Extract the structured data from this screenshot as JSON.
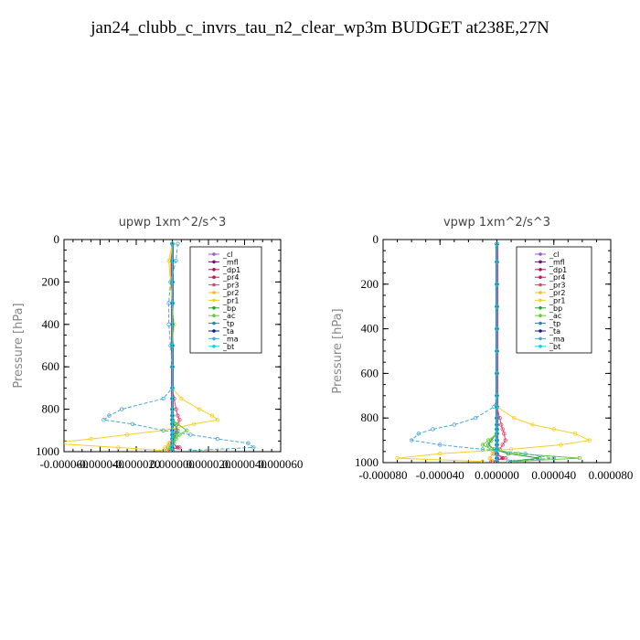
{
  "title": "jan24_clubb_c_invrs_tau_n2_clear_wp3m  BUDGET at238E,27N",
  "series_names": [
    "_cl",
    "_mfl",
    "_dp1",
    "_pr4",
    "_pr3",
    "_pr2",
    "_pr1",
    "_bp",
    "_ac",
    "_tp",
    "_ta",
    "_ma",
    "_bt"
  ],
  "series_colors": [
    "#9b59d0",
    "#7a0f7a",
    "#b0105a",
    "#c2185b",
    "#e8436a",
    "#f0c020",
    "#f5d020",
    "#2aa02a",
    "#66cc33",
    "#1e88b8",
    "#0a1a9a",
    "#4aa8d8",
    "#00d8e8"
  ],
  "chart_data": [
    {
      "type": "line",
      "title": "upwp   1xm^2/s^3",
      "ylabel": "Pressure [hPa]",
      "xlim": [
        -6e-05,
        6e-05
      ],
      "ylim": [
        1000,
        0
      ],
      "xticks": [
        "-0.000060",
        "-0.000040",
        "-0.000020",
        "0.000000",
        "0.000020",
        "0.000040",
        "0.000060"
      ],
      "yticks": [
        "0",
        "200",
        "400",
        "600",
        "800",
        "1000"
      ],
      "y": [
        20,
        100,
        200,
        300,
        400,
        500,
        600,
        700,
        750,
        800,
        830,
        850,
        870,
        900,
        920,
        940,
        960,
        980,
        995
      ],
      "series": [
        {
          "name": "_cl",
          "values": [
            0,
            0,
            0,
            0,
            0,
            0,
            0,
            0,
            0,
            0,
            0,
            0,
            0,
            0,
            0,
            0,
            0,
            0,
            0
          ]
        },
        {
          "name": "_mfl",
          "values": [
            0,
            0,
            0,
            0,
            0,
            0,
            0,
            0,
            0,
            0,
            0,
            0,
            0,
            0,
            0,
            0,
            0,
            0,
            0
          ]
        },
        {
          "name": "_dp1",
          "values": [
            0,
            0,
            0,
            0,
            0,
            0,
            0,
            0,
            0,
            0,
            0,
            0,
            0,
            0,
            0,
            0,
            0,
            3e-06,
            -2e-06
          ]
        },
        {
          "name": "_pr4",
          "values": [
            0,
            0,
            0,
            0,
            0,
            0,
            0,
            0,
            0,
            0,
            0,
            0,
            0,
            0,
            0,
            0,
            0,
            0,
            0
          ]
        },
        {
          "name": "_pr3",
          "values": [
            0,
            0,
            0,
            0,
            0,
            0,
            0,
            0,
            1e-06,
            2e-06,
            3e-06,
            4e-06,
            3e-06,
            2e-06,
            1e-06,
            0,
            -1e-06,
            4e-06,
            -3e-06
          ]
        },
        {
          "name": "_pr2",
          "values": [
            0,
            -1e-06,
            -1e-06,
            0,
            0,
            0,
            0,
            0,
            0,
            0,
            0,
            0,
            0,
            0,
            0,
            0,
            -2e-06,
            -4e-06,
            -2e-06
          ]
        },
        {
          "name": "_pr1",
          "values": [
            0,
            -2e-06,
            -1e-06,
            0,
            1e-06,
            0,
            0,
            0,
            5e-06,
            1.5e-05,
            2.2e-05,
            2.5e-05,
            1.2e-05,
            -5e-06,
            -2.5e-05,
            -4.5e-05,
            -6.8e-05,
            -3e-05,
            -5e-06
          ]
        },
        {
          "name": "_bp",
          "values": [
            0,
            0,
            0,
            0,
            0,
            0,
            0,
            0,
            0,
            0,
            0,
            0,
            1e-06,
            3e-06,
            2e-06,
            1e-06,
            0,
            -1e-06,
            0
          ]
        },
        {
          "name": "_ac",
          "values": [
            0,
            0,
            0,
            0,
            0,
            0,
            0,
            0,
            0,
            0,
            0,
            0,
            3e-06,
            8e-06,
            4e-06,
            2e-06,
            1e-06,
            -2e-06,
            0
          ]
        },
        {
          "name": "_tp",
          "values": [
            0,
            0,
            0,
            0,
            0,
            0,
            0,
            0,
            0,
            0,
            0,
            0,
            0,
            0,
            0,
            0,
            0,
            0,
            0
          ]
        },
        {
          "name": "_ta",
          "values": [
            0,
            0,
            0,
            0,
            0,
            0,
            0,
            0,
            0,
            0,
            0,
            0,
            0,
            0,
            0,
            0,
            0,
            0,
            0
          ]
        },
        {
          "name": "_ma",
          "values": [
            3e-06,
            2e-06,
            -1e-06,
            -2e-06,
            -2e-06,
            -1e-06,
            0,
            0,
            -5e-06,
            -2.8e-05,
            -3.5e-05,
            -3.8e-05,
            -2.2e-05,
            -5e-06,
            1e-05,
            2.5e-05,
            4.2e-05,
            4.5e-05,
            1e-05
          ]
        },
        {
          "name": "_bt",
          "values": [
            0,
            0,
            0,
            0,
            0,
            0,
            0,
            0,
            0,
            0,
            0,
            0,
            0,
            0,
            0,
            0,
            0,
            0,
            0
          ]
        }
      ]
    },
    {
      "type": "line",
      "title": "vpwp   1xm^2/s^3",
      "ylabel": "Pressure [hPa]",
      "xlim": [
        -8e-05,
        8e-05
      ],
      "ylim": [
        1000,
        0
      ],
      "xticks": [
        "-0.000080",
        "-0.000040",
        "0.000000",
        "0.000040",
        "0.000080"
      ],
      "yticks": [
        "0",
        "200",
        "400",
        "600",
        "800",
        "1000"
      ],
      "y": [
        20,
        100,
        200,
        300,
        400,
        500,
        600,
        700,
        750,
        800,
        830,
        850,
        870,
        900,
        920,
        940,
        960,
        980,
        995
      ],
      "series": [
        {
          "name": "_cl",
          "values": [
            0,
            0,
            0,
            0,
            0,
            0,
            0,
            0,
            0,
            0,
            0,
            0,
            0,
            0,
            0,
            0,
            0,
            0,
            0
          ]
        },
        {
          "name": "_mfl",
          "values": [
            0,
            0,
            0,
            0,
            0,
            0,
            0,
            0,
            0,
            0,
            0,
            0,
            0,
            0,
            0,
            0,
            0,
            0,
            0
          ]
        },
        {
          "name": "_dp1",
          "values": [
            0,
            0,
            0,
            0,
            0,
            0,
            0,
            0,
            0,
            0,
            0,
            0,
            0,
            0,
            0,
            0,
            0,
            4e-06,
            -3e-06
          ]
        },
        {
          "name": "_pr4",
          "values": [
            0,
            0,
            0,
            0,
            0,
            0,
            0,
            0,
            0,
            0,
            0,
            0,
            0,
            0,
            0,
            0,
            0,
            0,
            0
          ]
        },
        {
          "name": "_pr3",
          "values": [
            0,
            0,
            0,
            0,
            0,
            0,
            0,
            0,
            0,
            2e-06,
            3e-06,
            4e-06,
            5e-06,
            6e-06,
            4e-06,
            2e-06,
            -2e-06,
            6e-06,
            -4e-06
          ]
        },
        {
          "name": "_pr2",
          "values": [
            0,
            0,
            0,
            0,
            0,
            0,
            0,
            0,
            0,
            0,
            0,
            0,
            0,
            0,
            0,
            0,
            -3e-06,
            -5e-06,
            -2e-06
          ]
        },
        {
          "name": "_pr1",
          "values": [
            0,
            0,
            0,
            0,
            0,
            0,
            0,
            0,
            0,
            1.2e-05,
            2.5e-05,
            4e-05,
            5.5e-05,
            6.5e-05,
            4.5e-05,
            1e-05,
            -4e-05,
            -7e-05,
            -1e-05
          ]
        },
        {
          "name": "_bp",
          "values": [
            0,
            0,
            0,
            0,
            0,
            0,
            0,
            0,
            0,
            0,
            0,
            0,
            0,
            -4e-06,
            -6e-06,
            -2e-06,
            8e-06,
            3e-05,
            8e-06
          ]
        },
        {
          "name": "_ac",
          "values": [
            0,
            0,
            0,
            0,
            0,
            0,
            0,
            0,
            0,
            0,
            0,
            0,
            0,
            -6e-06,
            -1e-05,
            -4e-06,
            1.5e-05,
            5.8e-05,
            1.2e-05
          ]
        },
        {
          "name": "_tp",
          "values": [
            0,
            0,
            0,
            0,
            0,
            0,
            0,
            0,
            0,
            0,
            0,
            0,
            0,
            0,
            0,
            0,
            0,
            0,
            0
          ]
        },
        {
          "name": "_ta",
          "values": [
            0,
            0,
            0,
            0,
            0,
            0,
            0,
            0,
            0,
            0,
            0,
            0,
            0,
            0,
            0,
            0,
            0,
            0,
            0
          ]
        },
        {
          "name": "_ma",
          "values": [
            0,
            0,
            0,
            0,
            0,
            0,
            0,
            0,
            -2e-06,
            -1.5e-05,
            -3e-05,
            -4.5e-05,
            -5.5e-05,
            -6e-05,
            -4e-05,
            -1e-05,
            2e-05,
            4e-05,
            8e-06
          ]
        },
        {
          "name": "_bt",
          "values": [
            0,
            0,
            0,
            0,
            0,
            0,
            0,
            0,
            0,
            0,
            0,
            0,
            0,
            0,
            0,
            0,
            0,
            0,
            0
          ]
        }
      ]
    }
  ]
}
